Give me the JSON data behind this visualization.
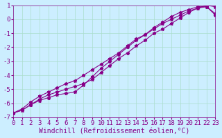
{
  "bg_color": "#cceeff",
  "grid_color": "#aaddcc",
  "line_color": "#880088",
  "marker_color": "#880088",
  "xlabel": "Windchill (Refroidissement éolien,°C)",
  "xlim": [
    0,
    23
  ],
  "ylim": [
    -7,
    1
  ],
  "xticks": [
    0,
    1,
    2,
    3,
    4,
    5,
    6,
    7,
    8,
    9,
    10,
    11,
    12,
    13,
    14,
    15,
    16,
    17,
    18,
    19,
    20,
    21,
    22,
    23
  ],
  "yticks": [
    -7,
    -6,
    -5,
    -4,
    -3,
    -2,
    -1,
    0,
    1
  ],
  "line1_x": [
    0,
    1,
    2,
    3,
    4,
    5,
    6,
    7,
    8,
    9,
    10,
    11,
    12,
    13,
    14,
    15,
    16,
    17,
    18,
    19,
    20,
    21,
    22,
    23
  ],
  "line1_y": [
    -6.7,
    -6.5,
    -6.1,
    -5.7,
    -5.4,
    -5.2,
    -5.0,
    -4.8,
    -4.6,
    -4.3,
    -3.8,
    -3.3,
    -2.8,
    -2.4,
    -1.9,
    -1.5,
    -1.0,
    -0.7,
    -0.3,
    0.1,
    0.5,
    0.8,
    1.0,
    0.9
  ],
  "line2_x": [
    0,
    1,
    2,
    3,
    4,
    5,
    6,
    7,
    8,
    9,
    10,
    11,
    12,
    13,
    14,
    15,
    16,
    17,
    18,
    19,
    20,
    21,
    22,
    23
  ],
  "line2_y": [
    -6.7,
    -6.5,
    -6.1,
    -5.8,
    -5.6,
    -5.4,
    -5.3,
    -5.2,
    -4.7,
    -4.1,
    -3.5,
    -3.0,
    -2.5,
    -2.0,
    -1.5,
    -1.1,
    -0.7,
    -0.3,
    0.0,
    0.3,
    0.6,
    0.8,
    0.9,
    0.4
  ],
  "line3_x": [
    0,
    1,
    2,
    3,
    4,
    5,
    6,
    7,
    8,
    9,
    10,
    11,
    12,
    13,
    14,
    15,
    16,
    17,
    18,
    19,
    20,
    21,
    22,
    23
  ],
  "line3_y": [
    -6.7,
    -6.4,
    -5.9,
    -5.5,
    -5.2,
    -4.9,
    -4.6,
    -4.4,
    -4.0,
    -3.6,
    -3.2,
    -2.8,
    -2.4,
    -1.9,
    -1.4,
    -1.1,
    -0.6,
    -0.2,
    0.2,
    0.5,
    0.7,
    0.9,
    0.9,
    0.3
  ],
  "font_family": "monospace",
  "xlabel_fontsize": 7,
  "tick_fontsize": 6.5,
  "marker": "*",
  "marker_size": 3.5
}
